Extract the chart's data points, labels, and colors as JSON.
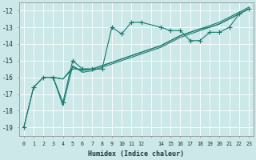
{
  "xlabel": "Humidex (Indice chaleur)",
  "background_color": "#cde8e8",
  "grid_color": "#b0d0d0",
  "line_color": "#1a7a6e",
  "xlim": [
    -0.5,
    23.5
  ],
  "ylim": [
    -19.5,
    -11.5
  ],
  "yticks": [
    -19,
    -18,
    -17,
    -16,
    -15,
    -14,
    -13,
    -12
  ],
  "series1": [
    [
      0,
      -19.0
    ],
    [
      1,
      -16.6
    ],
    [
      2,
      -16.0
    ],
    [
      3,
      -16.0
    ],
    [
      4,
      -17.5
    ],
    [
      5,
      -15.0
    ],
    [
      6,
      -15.5
    ],
    [
      7,
      -15.5
    ],
    [
      8,
      -15.5
    ],
    [
      9,
      -13.0
    ],
    [
      10,
      -13.4
    ],
    [
      11,
      -12.7
    ],
    [
      12,
      -12.7
    ],
    [
      14,
      -13.0
    ],
    [
      15,
      -13.2
    ],
    [
      16,
      -13.2
    ],
    [
      17,
      -13.8
    ],
    [
      18,
      -13.8
    ],
    [
      19,
      -13.3
    ],
    [
      20,
      -13.3
    ],
    [
      21,
      -13.0
    ],
    [
      22,
      -12.2
    ],
    [
      23,
      -11.9
    ]
  ],
  "series2": [
    [
      0,
      -19.0
    ],
    [
      1,
      -16.6
    ],
    [
      2,
      -16.0
    ],
    [
      3,
      -16.0
    ],
    [
      4,
      -16.1
    ],
    [
      5,
      -15.5
    ],
    [
      6,
      -15.5
    ],
    [
      7,
      -15.5
    ],
    [
      8,
      -15.3
    ],
    [
      9,
      -15.1
    ],
    [
      10,
      -14.9
    ],
    [
      11,
      -14.7
    ],
    [
      12,
      -14.5
    ],
    [
      14,
      -14.1
    ],
    [
      15,
      -13.8
    ],
    [
      16,
      -13.5
    ],
    [
      17,
      -13.3
    ],
    [
      18,
      -13.1
    ],
    [
      19,
      -13.0
    ],
    [
      20,
      -12.8
    ],
    [
      21,
      -12.5
    ],
    [
      22,
      -12.2
    ],
    [
      23,
      -11.9
    ]
  ],
  "series3": [
    [
      3,
      -16.0
    ],
    [
      4,
      -17.7
    ],
    [
      5,
      -15.3
    ],
    [
      6,
      -15.7
    ],
    [
      7,
      -15.6
    ],
    [
      8,
      -15.4
    ],
    [
      9,
      -15.2
    ],
    [
      10,
      -15.0
    ],
    [
      11,
      -14.8
    ],
    [
      12,
      -14.6
    ],
    [
      14,
      -14.2
    ],
    [
      15,
      -13.9
    ],
    [
      16,
      -13.6
    ],
    [
      17,
      -13.4
    ],
    [
      18,
      -13.2
    ],
    [
      19,
      -13.0
    ],
    [
      20,
      -12.8
    ],
    [
      21,
      -12.5
    ],
    [
      22,
      -12.2
    ],
    [
      23,
      -11.9
    ]
  ],
  "series4": [
    [
      3,
      -16.0
    ],
    [
      4,
      -16.1
    ],
    [
      5,
      -15.4
    ],
    [
      6,
      -15.6
    ],
    [
      7,
      -15.5
    ],
    [
      8,
      -15.3
    ],
    [
      9,
      -15.1
    ],
    [
      10,
      -14.9
    ],
    [
      11,
      -14.7
    ],
    [
      12,
      -14.5
    ],
    [
      14,
      -14.1
    ],
    [
      15,
      -13.8
    ],
    [
      16,
      -13.5
    ],
    [
      17,
      -13.3
    ],
    [
      18,
      -13.1
    ],
    [
      19,
      -12.9
    ],
    [
      20,
      -12.7
    ],
    [
      21,
      -12.4
    ],
    [
      22,
      -12.1
    ],
    [
      23,
      -11.8
    ]
  ]
}
